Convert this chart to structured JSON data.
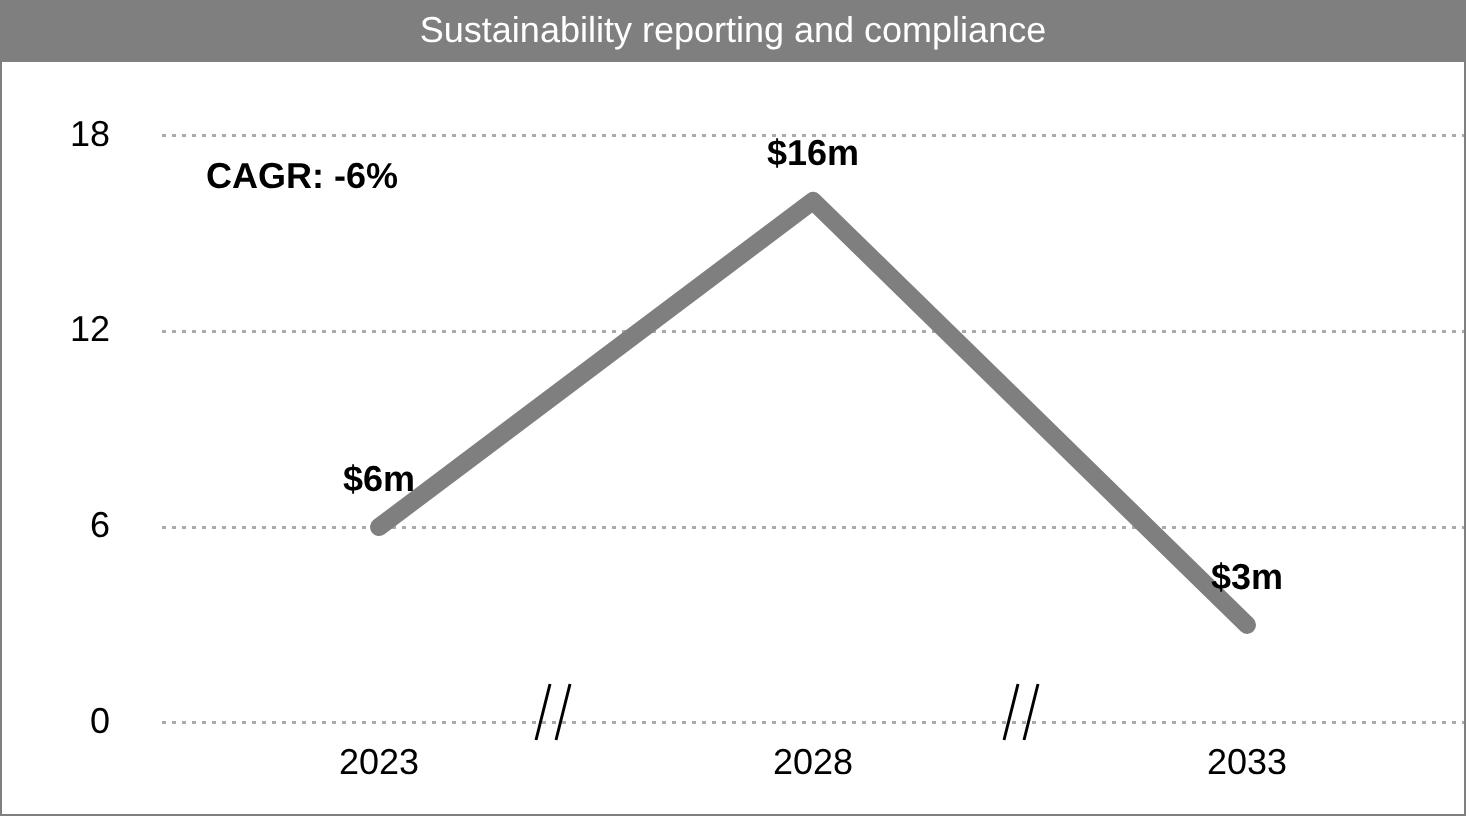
{
  "chart_data": {
    "type": "line",
    "title": "Sustainability reporting and compliance",
    "categories": [
      "2023",
      "2028",
      "2033"
    ],
    "series": [
      {
        "color": "#7f7f7f",
        "values": [
          6,
          16,
          3
        ],
        "value_labels": [
          "$6m",
          "$16m",
          "$3m"
        ]
      }
    ],
    "ylim": [
      0,
      18
    ],
    "yticks": [
      0,
      6,
      12,
      18
    ],
    "grid": "y",
    "legend": false,
    "marker": "none",
    "line_style": "solid",
    "annotations": [
      "CAGR: -6%"
    ]
  }
}
